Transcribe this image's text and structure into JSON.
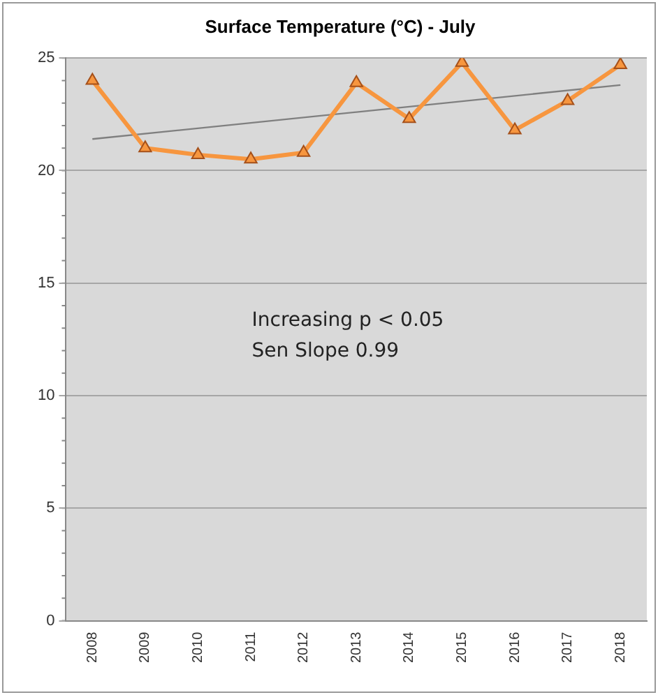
{
  "chart_data": {
    "type": "line",
    "title": "Surface Temperature (°C) - July",
    "categories": [
      "2008",
      "2009",
      "2010",
      "2011",
      "2012",
      "2013",
      "2014",
      "2015",
      "2016",
      "2017",
      "2018"
    ],
    "series": [
      {
        "color": "#f7963f",
        "values": [
          24.0,
          21.0,
          20.7,
          20.5,
          20.8,
          23.9,
          22.3,
          24.8,
          21.8,
          23.1,
          24.7
        ],
        "marker": "triangle"
      },
      {
        "type": "line",
        "color": "#7f7f7f",
        "values": [
          21.4,
          null,
          null,
          null,
          null,
          null,
          null,
          null,
          null,
          null,
          23.8
        ],
        "marker": "none"
      }
    ],
    "ylim": [
      0,
      25
    ],
    "yticks": [
      0,
      5,
      10,
      15,
      20,
      25
    ],
    "grid": "y",
    "legend": false,
    "annotations": [
      "Increasing p < 0.05",
      "Sen Slope 0.99"
    ]
  }
}
